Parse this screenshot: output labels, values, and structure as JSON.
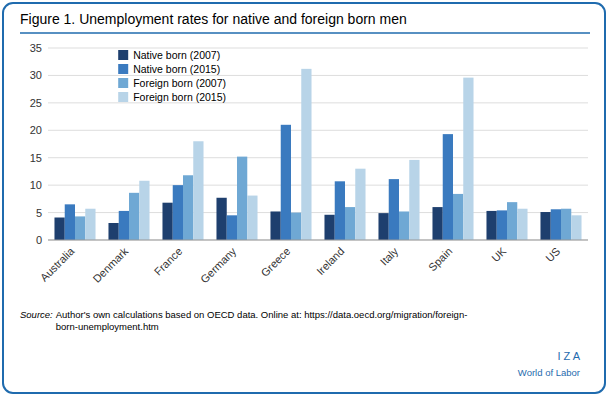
{
  "chart_data": {
    "type": "bar",
    "title": "Figure 1. Unemployment rates for native and foreign born men",
    "categories": [
      "Australia",
      "Denmark",
      "France",
      "Germany",
      "Greece",
      "Ireland",
      "Italy",
      "Spain",
      "UK",
      "US"
    ],
    "series": [
      {
        "name": "Native born (2007)",
        "color": "#1e3f6e",
        "values": [
          4.1,
          3.1,
          6.8,
          7.7,
          5.2,
          4.6,
          4.9,
          6.0,
          5.3,
          5.1
        ]
      },
      {
        "name": "Native born (2015)",
        "color": "#3a7abf",
        "values": [
          6.5,
          5.3,
          10.0,
          4.5,
          21.0,
          10.7,
          11.1,
          19.3,
          5.4,
          5.6
        ]
      },
      {
        "name": "Foreign born (2007)",
        "color": "#6fa8d4",
        "values": [
          4.3,
          8.6,
          11.8,
          15.2,
          5.0,
          6.0,
          5.2,
          8.4,
          6.9,
          5.7
        ]
      },
      {
        "name": "Foreign born (2015)",
        "color": "#b8d4e8",
        "values": [
          5.7,
          10.8,
          18.0,
          8.1,
          31.2,
          13.0,
          14.6,
          29.6,
          5.7,
          4.5
        ]
      }
    ],
    "ylim": [
      0,
      35
    ],
    "yticks": [
      0,
      5,
      10,
      15,
      20,
      25,
      30,
      35
    ],
    "grid": true,
    "legend": "upper left",
    "annotations": [
      "Source:",
      "Author's own calculations based on OECD data. Online at: https://data.oecd.org/migration/foreign-\nborn-unemployment.htm",
      "I  Z  A",
      "World of Labor"
    ]
  }
}
